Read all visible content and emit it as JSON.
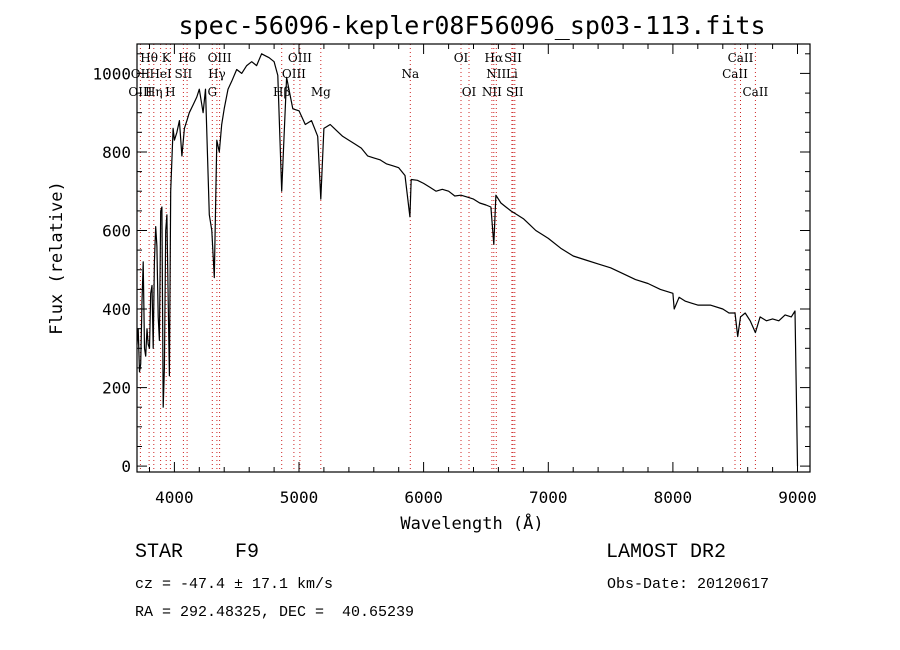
{
  "chart_data": {
    "type": "line",
    "title": "spec-56096-kepler08F56096_sp03-113.fits",
    "xlabel": "Wavelength (Å)",
    "ylabel": "Flux (relative)",
    "xlim": [
      3700,
      9100
    ],
    "ylim": [
      -15,
      1075
    ],
    "xticks": [
      4000,
      5000,
      6000,
      7000,
      8000,
      9000
    ],
    "yticks": [
      0,
      200,
      400,
      600,
      800,
      1000
    ],
    "grid": false,
    "line_color": "#000000",
    "marker_color": "#cc2222",
    "spectrum": {
      "x": [
        3700,
        3710,
        3720,
        3730,
        3740,
        3750,
        3760,
        3770,
        3780,
        3790,
        3800,
        3810,
        3820,
        3830,
        3840,
        3850,
        3860,
        3870,
        3880,
        3890,
        3900,
        3910,
        3920,
        3930,
        3940,
        3950,
        3960,
        3970,
        3980,
        3990,
        4000,
        4020,
        4040,
        4060,
        4080,
        4100,
        4120,
        4150,
        4180,
        4200,
        4230,
        4250,
        4280,
        4300,
        4320,
        4340,
        4360,
        4380,
        4400,
        4430,
        4460,
        4500,
        4540,
        4580,
        4620,
        4660,
        4700,
        4730,
        4760,
        4800,
        4830,
        4861,
        4900,
        4950,
        5000,
        5050,
        5100,
        5150,
        5175,
        5200,
        5250,
        5300,
        5350,
        5400,
        5450,
        5500,
        5550,
        5600,
        5650,
        5700,
        5750,
        5800,
        5850,
        5890,
        5900,
        5950,
        6000,
        6050,
        6100,
        6150,
        6200,
        6250,
        6300,
        6350,
        6400,
        6450,
        6500,
        6540,
        6563,
        6580,
        6620,
        6660,
        6700,
        6750,
        6800,
        6850,
        6900,
        6950,
        7000,
        7100,
        7200,
        7300,
        7400,
        7500,
        7600,
        7700,
        7800,
        7900,
        8000,
        8010,
        8050,
        8100,
        8150,
        8200,
        8300,
        8400,
        8450,
        8498,
        8520,
        8542,
        8580,
        8620,
        8662,
        8700,
        8750,
        8800,
        8850,
        8900,
        8950,
        8980,
        9000
      ],
      "y": [
        310,
        350,
        240,
        260,
        420,
        520,
        300,
        280,
        350,
        310,
        300,
        440,
        460,
        300,
        520,
        610,
        560,
        380,
        320,
        650,
        660,
        150,
        250,
        600,
        640,
        420,
        230,
        700,
        780,
        860,
        830,
        850,
        880,
        790,
        860,
        880,
        900,
        920,
        940,
        960,
        900,
        960,
        640,
        600,
        480,
        830,
        800,
        870,
        910,
        960,
        980,
        1010,
        1000,
        1020,
        1030,
        1020,
        1050,
        1045,
        1040,
        1030,
        995,
        700,
        990,
        910,
        905,
        870,
        880,
        840,
        680,
        860,
        870,
        855,
        840,
        830,
        820,
        810,
        790,
        785,
        780,
        770,
        765,
        760,
        740,
        635,
        730,
        728,
        720,
        710,
        700,
        705,
        700,
        688,
        690,
        685,
        680,
        670,
        665,
        660,
        565,
        690,
        670,
        660,
        650,
        640,
        630,
        615,
        600,
        590,
        580,
        555,
        535,
        525,
        515,
        505,
        490,
        475,
        465,
        450,
        440,
        400,
        430,
        420,
        415,
        410,
        410,
        400,
        390,
        390,
        330,
        380,
        390,
        370,
        340,
        380,
        370,
        375,
        370,
        385,
        380,
        395,
        0
      ]
    },
    "lines": [
      {
        "name": "Hθ",
        "x": 3797,
        "row": 1
      },
      {
        "name": "K",
        "x": 3934,
        "row": 1
      },
      {
        "name": "Hδ",
        "x": 4102,
        "row": 1
      },
      {
        "name": "OIII",
        "x": 4363,
        "row": 1
      },
      {
        "name": "OIII",
        "x": 5007,
        "row": 1
      },
      {
        "name": "OI",
        "x": 6300,
        "row": 1
      },
      {
        "name": "Hα",
        "x": 6563,
        "row": 1
      },
      {
        "name": "SII",
        "x": 6717,
        "row": 1
      },
      {
        "name": "CaII",
        "x": 8542,
        "row": 1
      },
      {
        "name": "OII",
        "x": 3727,
        "row": 2
      },
      {
        "name": "HeI",
        "x": 3889,
        "row": 2
      },
      {
        "name": "SII",
        "x": 4072,
        "row": 2
      },
      {
        "name": "Hγ",
        "x": 4341,
        "row": 2
      },
      {
        "name": "OIII",
        "x": 4959,
        "row": 2
      },
      {
        "name": "Na",
        "x": 5893,
        "row": 2
      },
      {
        "name": "NII",
        "x": 6583,
        "row": 2
      },
      {
        "name": "Li",
        "x": 6708,
        "row": 2
      },
      {
        "name": "CaII",
        "x": 8498,
        "row": 2
      },
      {
        "name": "OIII",
        "x": 3727,
        "row": 3
      },
      {
        "name": "Hη",
        "x": 3835,
        "row": 3
      },
      {
        "name": "H",
        "x": 3968,
        "row": 3
      },
      {
        "name": "G",
        "x": 4304,
        "row": 3
      },
      {
        "name": "Hβ",
        "x": 4861,
        "row": 3
      },
      {
        "name": "Mg",
        "x": 5175,
        "row": 3
      },
      {
        "name": "OI",
        "x": 6364,
        "row": 3
      },
      {
        "name": "NII",
        "x": 6548,
        "row": 3
      },
      {
        "name": "SII",
        "x": 6731,
        "row": 3
      },
      {
        "name": "CaII",
        "x": 8662,
        "row": 3
      }
    ]
  },
  "info": {
    "class_label": "STAR",
    "subclass": "F9",
    "survey": "LAMOST DR2",
    "cz": "cz = -47.4 ± 17.1 km/s",
    "obs_date": "Obs-Date: 20120617",
    "coords": "RA = 292.48325, DEC =  40.65239"
  }
}
